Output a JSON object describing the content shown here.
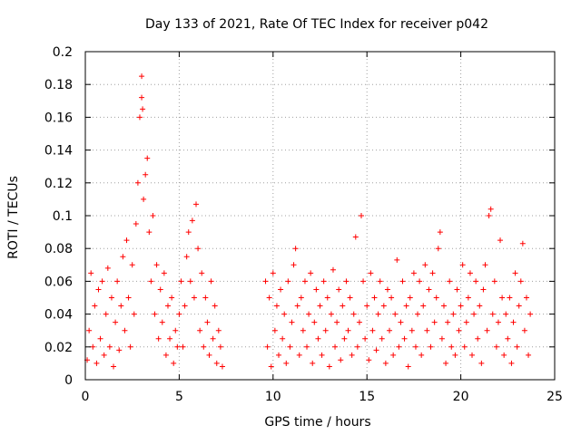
{
  "chart_data": {
    "type": "scatter",
    "title": "Day 133 of 2021, Rate Of TEC Index for receiver p042",
    "xlabel": "GPS time / hours",
    "ylabel": "ROTI / TECUs",
    "xlim": [
      0,
      25
    ],
    "ylim": [
      0,
      0.2
    ],
    "x_ticks": [
      "0",
      "5",
      "10",
      "15",
      "20",
      "25"
    ],
    "y_ticks": [
      "0",
      "0.02",
      "0.04",
      "0.06",
      "0.08",
      "0.1",
      "0.12",
      "0.14",
      "0.16",
      "0.18",
      "0.2"
    ],
    "grid": true,
    "marker": "+",
    "series": [
      {
        "color": "#ff0000",
        "points": [
          [
            0.1,
            0.012
          ],
          [
            0.2,
            0.03
          ],
          [
            0.3,
            0.065
          ],
          [
            0.4,
            0.02
          ],
          [
            0.5,
            0.045
          ],
          [
            0.6,
            0.01
          ],
          [
            0.7,
            0.055
          ],
          [
            0.8,
            0.025
          ],
          [
            0.9,
            0.06
          ],
          [
            1.0,
            0.015
          ],
          [
            1.1,
            0.04
          ],
          [
            1.2,
            0.068
          ],
          [
            1.3,
            0.02
          ],
          [
            1.4,
            0.05
          ],
          [
            1.5,
            0.008
          ],
          [
            1.6,
            0.035
          ],
          [
            1.7,
            0.06
          ],
          [
            1.8,
            0.018
          ],
          [
            1.9,
            0.045
          ],
          [
            2.0,
            0.075
          ],
          [
            2.1,
            0.03
          ],
          [
            2.2,
            0.085
          ],
          [
            2.3,
            0.05
          ],
          [
            2.4,
            0.02
          ],
          [
            2.5,
            0.07
          ],
          [
            2.6,
            0.04
          ],
          [
            2.7,
            0.095
          ],
          [
            2.8,
            0.12
          ],
          [
            2.9,
            0.16
          ],
          [
            3.0,
            0.185
          ],
          [
            3.0,
            0.172
          ],
          [
            3.05,
            0.165
          ],
          [
            3.1,
            0.11
          ],
          [
            3.2,
            0.125
          ],
          [
            3.3,
            0.135
          ],
          [
            3.4,
            0.09
          ],
          [
            3.5,
            0.06
          ],
          [
            3.6,
            0.1
          ],
          [
            3.7,
            0.04
          ],
          [
            3.8,
            0.07
          ],
          [
            3.9,
            0.025
          ],
          [
            4.0,
            0.055
          ],
          [
            4.1,
            0.035
          ],
          [
            4.2,
            0.065
          ],
          [
            4.3,
            0.015
          ],
          [
            4.4,
            0.045
          ],
          [
            4.5,
            0.025
          ],
          [
            4.6,
            0.05
          ],
          [
            4.7,
            0.01
          ],
          [
            4.8,
            0.03
          ],
          [
            4.9,
            0.02
          ],
          [
            5.0,
            0.04
          ],
          [
            5.1,
            0.06
          ],
          [
            5.2,
            0.02
          ],
          [
            5.3,
            0.045
          ],
          [
            5.4,
            0.075
          ],
          [
            5.5,
            0.09
          ],
          [
            5.6,
            0.06
          ],
          [
            5.7,
            0.097
          ],
          [
            5.8,
            0.05
          ],
          [
            5.9,
            0.107
          ],
          [
            6.0,
            0.08
          ],
          [
            6.1,
            0.03
          ],
          [
            6.2,
            0.065
          ],
          [
            6.3,
            0.02
          ],
          [
            6.4,
            0.05
          ],
          [
            6.5,
            0.035
          ],
          [
            6.6,
            0.015
          ],
          [
            6.7,
            0.06
          ],
          [
            6.8,
            0.025
          ],
          [
            6.9,
            0.045
          ],
          [
            7.0,
            0.01
          ],
          [
            7.1,
            0.03
          ],
          [
            7.2,
            0.02
          ],
          [
            7.3,
            0.008
          ],
          [
            9.6,
            0.06
          ],
          [
            9.7,
            0.02
          ],
          [
            9.8,
            0.05
          ],
          [
            9.9,
            0.008
          ],
          [
            10.0,
            0.065
          ],
          [
            10.1,
            0.03
          ],
          [
            10.2,
            0.045
          ],
          [
            10.3,
            0.015
          ],
          [
            10.4,
            0.055
          ],
          [
            10.5,
            0.025
          ],
          [
            10.6,
            0.04
          ],
          [
            10.7,
            0.01
          ],
          [
            10.8,
            0.06
          ],
          [
            10.9,
            0.02
          ],
          [
            11.0,
            0.035
          ],
          [
            11.1,
            0.07
          ],
          [
            11.2,
            0.08
          ],
          [
            11.3,
            0.045
          ],
          [
            11.4,
            0.015
          ],
          [
            11.5,
            0.05
          ],
          [
            11.6,
            0.03
          ],
          [
            11.7,
            0.06
          ],
          [
            11.8,
            0.02
          ],
          [
            11.9,
            0.04
          ],
          [
            12.0,
            0.065
          ],
          [
            12.1,
            0.01
          ],
          [
            12.2,
            0.035
          ],
          [
            12.3,
            0.055
          ],
          [
            12.4,
            0.025
          ],
          [
            12.5,
            0.045
          ],
          [
            12.6,
            0.015
          ],
          [
            12.7,
            0.06
          ],
          [
            12.8,
            0.03
          ],
          [
            12.9,
            0.05
          ],
          [
            13.0,
            0.008
          ],
          [
            13.1,
            0.04
          ],
          [
            13.2,
            0.067
          ],
          [
            13.3,
            0.02
          ],
          [
            13.4,
            0.035
          ],
          [
            13.5,
            0.055
          ],
          [
            13.6,
            0.012
          ],
          [
            13.7,
            0.045
          ],
          [
            13.8,
            0.025
          ],
          [
            13.9,
            0.06
          ],
          [
            14.0,
            0.03
          ],
          [
            14.1,
            0.05
          ],
          [
            14.2,
            0.015
          ],
          [
            14.3,
            0.04
          ],
          [
            14.4,
            0.087
          ],
          [
            14.5,
            0.02
          ],
          [
            14.6,
            0.035
          ],
          [
            14.7,
            0.1
          ],
          [
            14.8,
            0.06
          ],
          [
            14.9,
            0.025
          ],
          [
            15.0,
            0.045
          ],
          [
            15.1,
            0.012
          ],
          [
            15.2,
            0.065
          ],
          [
            15.3,
            0.03
          ],
          [
            15.4,
            0.05
          ],
          [
            15.5,
            0.018
          ],
          [
            15.6,
            0.04
          ],
          [
            15.7,
            0.06
          ],
          [
            15.8,
            0.025
          ],
          [
            15.9,
            0.045
          ],
          [
            16.0,
            0.01
          ],
          [
            16.1,
            0.055
          ],
          [
            16.2,
            0.03
          ],
          [
            16.3,
            0.05
          ],
          [
            16.4,
            0.015
          ],
          [
            16.5,
            0.04
          ],
          [
            16.6,
            0.073
          ],
          [
            16.7,
            0.02
          ],
          [
            16.8,
            0.035
          ],
          [
            16.9,
            0.06
          ],
          [
            17.0,
            0.025
          ],
          [
            17.1,
            0.045
          ],
          [
            17.2,
            0.008
          ],
          [
            17.3,
            0.05
          ],
          [
            17.4,
            0.03
          ],
          [
            17.5,
            0.065
          ],
          [
            17.6,
            0.02
          ],
          [
            17.7,
            0.04
          ],
          [
            17.8,
            0.06
          ],
          [
            17.9,
            0.015
          ],
          [
            18.0,
            0.045
          ],
          [
            18.1,
            0.07
          ],
          [
            18.2,
            0.03
          ],
          [
            18.3,
            0.055
          ],
          [
            18.4,
            0.02
          ],
          [
            18.5,
            0.065
          ],
          [
            18.6,
            0.035
          ],
          [
            18.7,
            0.05
          ],
          [
            18.8,
            0.08
          ],
          [
            18.9,
            0.09
          ],
          [
            19.0,
            0.025
          ],
          [
            19.1,
            0.045
          ],
          [
            19.2,
            0.01
          ],
          [
            19.3,
            0.035
          ],
          [
            19.4,
            0.06
          ],
          [
            19.5,
            0.02
          ],
          [
            19.6,
            0.04
          ],
          [
            19.7,
            0.015
          ],
          [
            19.8,
            0.055
          ],
          [
            19.9,
            0.03
          ],
          [
            20.0,
            0.045
          ],
          [
            20.1,
            0.07
          ],
          [
            20.2,
            0.02
          ],
          [
            20.3,
            0.035
          ],
          [
            20.4,
            0.05
          ],
          [
            20.5,
            0.065
          ],
          [
            20.6,
            0.015
          ],
          [
            20.7,
            0.04
          ],
          [
            20.8,
            0.06
          ],
          [
            20.9,
            0.025
          ],
          [
            21.0,
            0.045
          ],
          [
            21.1,
            0.01
          ],
          [
            21.2,
            0.055
          ],
          [
            21.3,
            0.07
          ],
          [
            21.4,
            0.03
          ],
          [
            21.5,
            0.1
          ],
          [
            21.6,
            0.104
          ],
          [
            21.7,
            0.04
          ],
          [
            21.8,
            0.06
          ],
          [
            21.9,
            0.02
          ],
          [
            22.0,
            0.035
          ],
          [
            22.1,
            0.085
          ],
          [
            22.2,
            0.05
          ],
          [
            22.3,
            0.015
          ],
          [
            22.4,
            0.04
          ],
          [
            22.5,
            0.025
          ],
          [
            22.6,
            0.05
          ],
          [
            22.7,
            0.01
          ],
          [
            22.8,
            0.035
          ],
          [
            22.9,
            0.065
          ],
          [
            23.0,
            0.02
          ],
          [
            23.1,
            0.045
          ],
          [
            23.2,
            0.06
          ],
          [
            23.3,
            0.083
          ],
          [
            23.4,
            0.03
          ],
          [
            23.5,
            0.05
          ],
          [
            23.6,
            0.015
          ],
          [
            23.7,
            0.04
          ]
        ]
      }
    ]
  }
}
